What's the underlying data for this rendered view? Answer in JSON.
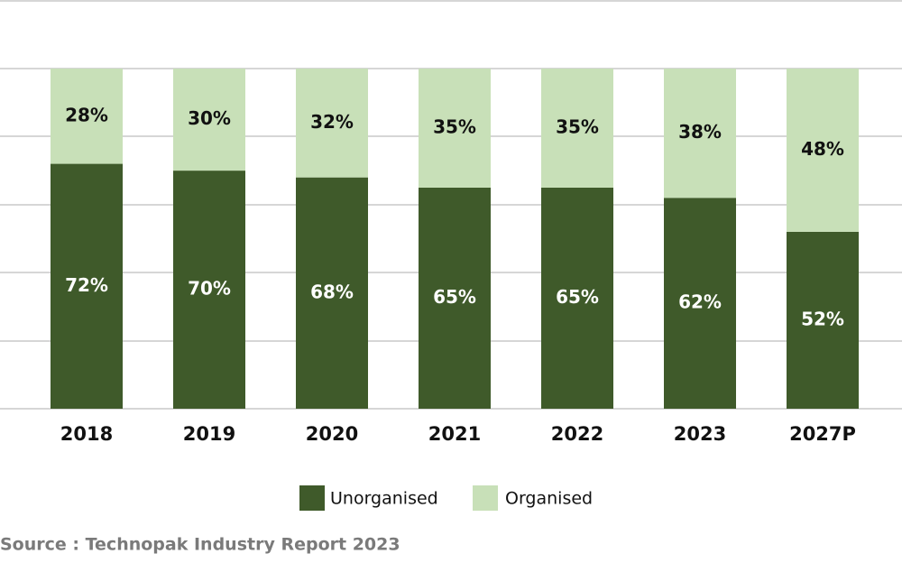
{
  "chart_data": {
    "type": "bar",
    "stacked": true,
    "normalized": true,
    "categories": [
      "2018",
      "2019",
      "2020",
      "2021",
      "2022",
      "2023",
      "2027P"
    ],
    "series": [
      {
        "name": "Unorganised",
        "values": [
          72,
          70,
          68,
          65,
          65,
          62,
          52
        ],
        "color": "#3f5a2a",
        "label_color": "#ffffff"
      },
      {
        "name": "Organised",
        "values": [
          28,
          30,
          32,
          35,
          35,
          38,
          48
        ],
        "color": "#c8e0b8",
        "label_color": "#111111"
      }
    ],
    "value_suffix": "%",
    "ylim": [
      0,
      100
    ],
    "grid": true,
    "legend_position": "bottom-center"
  },
  "source": {
    "text": "Source : Technopak Industry Report   2023"
  }
}
